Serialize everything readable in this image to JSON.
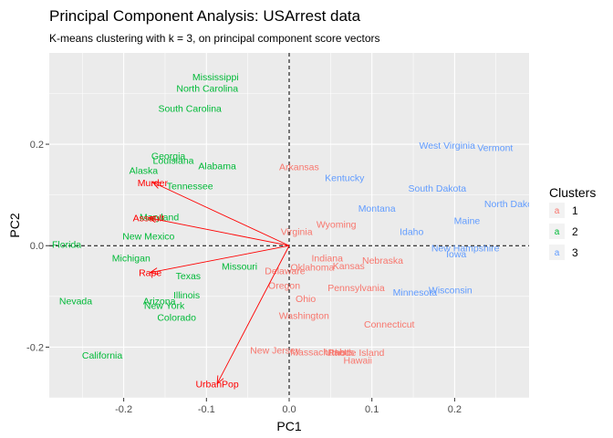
{
  "chart_data": {
    "type": "scatter",
    "title": "Principal Component Analysis: USArrest data",
    "subtitle": "K-means clustering with k = 3, on principal component score vectors",
    "xlabel": "PC1",
    "ylabel": "PC2",
    "xlim": [
      -0.29,
      0.29
    ],
    "ylim": [
      -0.3,
      0.38
    ],
    "xticks": [
      -0.2,
      -0.1,
      0.0,
      0.1,
      0.2
    ],
    "xtick_labels": [
      "-0.2",
      "-0.1",
      "0.0",
      "0.1",
      "0.2"
    ],
    "yticks": [
      -0.2,
      0.0,
      0.2
    ],
    "ytick_labels": [
      "-0.2",
      "0.0",
      "0.2"
    ],
    "grid": true,
    "reference_lines": {
      "x": 0,
      "y": 0,
      "style": "dashed"
    },
    "legend": {
      "title": "Clusters",
      "position": "right",
      "glyph": "a",
      "items": [
        {
          "label": "1",
          "color": "#F8766D"
        },
        {
          "label": "2",
          "color": "#00BA38"
        },
        {
          "label": "3",
          "color": "#619CFF"
        }
      ]
    },
    "cluster_colors": {
      "1": "#F8766D",
      "2": "#00BA38",
      "3": "#619CFF"
    },
    "points": [
      {
        "label": "Mississippi",
        "x": -0.089,
        "y": 0.333,
        "cluster": "2"
      },
      {
        "label": "North Carolina",
        "x": -0.099,
        "y": 0.311,
        "cluster": "2"
      },
      {
        "label": "South Carolina",
        "x": -0.12,
        "y": 0.271,
        "cluster": "2"
      },
      {
        "label": "Georgia",
        "x": -0.146,
        "y": 0.178,
        "cluster": "2"
      },
      {
        "label": "Alabama",
        "x": -0.087,
        "y": 0.158,
        "cluster": "2"
      },
      {
        "label": "Alaska",
        "x": -0.176,
        "y": 0.149,
        "cluster": "2"
      },
      {
        "label": "Louisiana",
        "x": -0.14,
        "y": 0.169,
        "cluster": "2"
      },
      {
        "label": "Tennessee",
        "x": -0.12,
        "y": 0.118,
        "cluster": "2"
      },
      {
        "label": "Maryland",
        "x": -0.157,
        "y": 0.057,
        "cluster": "2"
      },
      {
        "label": "New Mexico",
        "x": -0.17,
        "y": 0.019,
        "cluster": "2"
      },
      {
        "label": "Florida",
        "x": -0.269,
        "y": 0.003,
        "cluster": "2"
      },
      {
        "label": "Michigan",
        "x": -0.191,
        "y": -0.024,
        "cluster": "2"
      },
      {
        "label": "Missouri",
        "x": -0.06,
        "y": -0.04,
        "cluster": "2"
      },
      {
        "label": "Texas",
        "x": -0.122,
        "y": -0.059,
        "cluster": "2"
      },
      {
        "label": "Illinois",
        "x": -0.124,
        "y": -0.097,
        "cluster": "2"
      },
      {
        "label": "Nevada",
        "x": -0.258,
        "y": -0.108,
        "cluster": "2"
      },
      {
        "label": "Arizona",
        "x": -0.157,
        "y": -0.108,
        "cluster": "2"
      },
      {
        "label": "New York",
        "x": -0.151,
        "y": -0.117,
        "cluster": "2"
      },
      {
        "label": "Colorado",
        "x": -0.136,
        "y": -0.141,
        "cluster": "2"
      },
      {
        "label": "California",
        "x": -0.226,
        "y": -0.215,
        "cluster": "2"
      },
      {
        "label": "Arkansas",
        "x": 0.012,
        "y": 0.156,
        "cluster": "1"
      },
      {
        "label": "Wyoming",
        "x": 0.057,
        "y": 0.043,
        "cluster": "1"
      },
      {
        "label": "Virginia",
        "x": 0.009,
        "y": 0.028,
        "cluster": "1"
      },
      {
        "label": "Indiana",
        "x": 0.046,
        "y": -0.024,
        "cluster": "1"
      },
      {
        "label": "Nebraska",
        "x": 0.113,
        "y": -0.028,
        "cluster": "1"
      },
      {
        "label": "Kansas",
        "x": 0.072,
        "y": -0.039,
        "cluster": "1"
      },
      {
        "label": "Oklahoma",
        "x": 0.028,
        "y": -0.042,
        "cluster": "1"
      },
      {
        "label": "Delaware",
        "x": -0.005,
        "y": -0.049,
        "cluster": "1"
      },
      {
        "label": "Oregon",
        "x": -0.006,
        "y": -0.078,
        "cluster": "1"
      },
      {
        "label": "Pennsylvania",
        "x": 0.081,
        "y": -0.082,
        "cluster": "1"
      },
      {
        "label": "Ohio",
        "x": 0.02,
        "y": -0.104,
        "cluster": "1"
      },
      {
        "label": "Washington",
        "x": 0.018,
        "y": -0.137,
        "cluster": "1"
      },
      {
        "label": "Connecticut",
        "x": 0.121,
        "y": -0.154,
        "cluster": "1"
      },
      {
        "label": "New Jersey",
        "x": -0.017,
        "y": -0.206,
        "cluster": "1"
      },
      {
        "label": "Massachusetts",
        "x": 0.04,
        "y": -0.209,
        "cluster": "1"
      },
      {
        "label": "Utah",
        "x": 0.055,
        "y": -0.209,
        "cluster": "1"
      },
      {
        "label": "Rhode Island",
        "x": 0.081,
        "y": -0.21,
        "cluster": "1"
      },
      {
        "label": "Hawaii",
        "x": 0.083,
        "y": -0.225,
        "cluster": "1"
      },
      {
        "label": "West Virginia",
        "x": 0.191,
        "y": 0.198,
        "cluster": "3"
      },
      {
        "label": "Vermont",
        "x": 0.249,
        "y": 0.194,
        "cluster": "3"
      },
      {
        "label": "Kentucky",
        "x": 0.067,
        "y": 0.134,
        "cluster": "3"
      },
      {
        "label": "South Dakota",
        "x": 0.179,
        "y": 0.114,
        "cluster": "3"
      },
      {
        "label": "North Dakota",
        "x": 0.27,
        "y": 0.083,
        "cluster": "3"
      },
      {
        "label": "Montana",
        "x": 0.106,
        "y": 0.074,
        "cluster": "3"
      },
      {
        "label": "Maine",
        "x": 0.215,
        "y": 0.05,
        "cluster": "3"
      },
      {
        "label": "Idaho",
        "x": 0.148,
        "y": 0.028,
        "cluster": "3"
      },
      {
        "label": "New Hampshire",
        "x": 0.213,
        "y": -0.004,
        "cluster": "3"
      },
      {
        "label": "Iowa",
        "x": 0.202,
        "y": -0.016,
        "cluster": "3"
      },
      {
        "label": "Wisconsin",
        "x": 0.195,
        "y": -0.087,
        "cluster": "3"
      },
      {
        "label": "Minnesota",
        "x": 0.152,
        "y": -0.091,
        "cluster": "3"
      }
    ],
    "loadings": [
      {
        "label": "Murder",
        "x": -0.165,
        "y": 0.125,
        "color": "#FF0000"
      },
      {
        "label": "Assault",
        "x": -0.17,
        "y": 0.055,
        "color": "#FF0000"
      },
      {
        "label": "Rape",
        "x": -0.168,
        "y": -0.053,
        "color": "#FF0000"
      },
      {
        "label": "UrbanPop",
        "x": -0.087,
        "y": -0.272,
        "color": "#FF0000"
      }
    ]
  }
}
